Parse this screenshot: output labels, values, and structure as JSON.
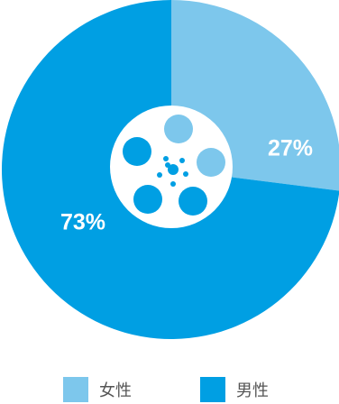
{
  "chart_data": {
    "type": "pie",
    "slices": [
      {
        "label": "女性",
        "value": 27,
        "display": "27%",
        "color": "#7dc7ec"
      },
      {
        "label": "男性",
        "value": 73,
        "display": "73%",
        "color": "#009fe3"
      }
    ],
    "center_icon": "film-reel-icon",
    "legend_position": "bottom"
  }
}
